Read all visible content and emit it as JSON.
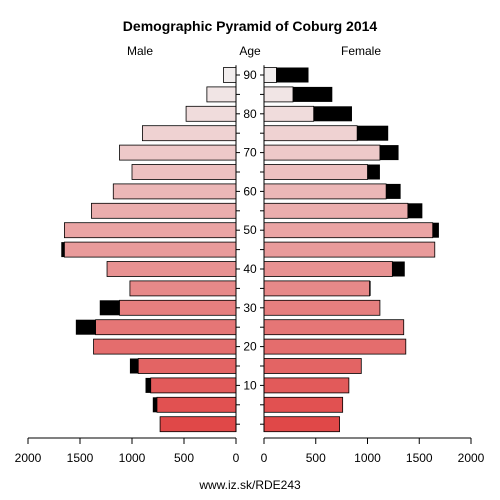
{
  "chart_data": {
    "type": "bar",
    "orientation": "horizontal-pyramid",
    "title": "Demographic Pyramid of Coburg 2014",
    "left_label": "Male",
    "center_label": "Age",
    "right_label": "Female",
    "footer": "www.iz.sk/RDE243",
    "age_groups": [
      "0-4",
      "5-9",
      "10-14",
      "15-19",
      "20-24",
      "25-29",
      "30-34",
      "35-39",
      "40-44",
      "45-49",
      "50-54",
      "55-59",
      "60-64",
      "65-69",
      "70-74",
      "75-79",
      "80-84",
      "85-89",
      "90+"
    ],
    "age_ticks": [
      10,
      20,
      30,
      40,
      50,
      60,
      70,
      80,
      90
    ],
    "x_ticks": [
      0,
      500,
      1000,
      1500,
      2000
    ],
    "xlim": [
      0,
      2000
    ],
    "series": [
      {
        "name": "Male",
        "values": [
          730,
          760,
          820,
          940,
          1370,
          1350,
          1120,
          1020,
          1240,
          1650,
          1650,
          1390,
          1180,
          1000,
          1120,
          900,
          480,
          280,
          120
        ]
      },
      {
        "name": "Male surplus",
        "values": [
          0,
          40,
          50,
          80,
          0,
          190,
          190,
          0,
          0,
          30,
          0,
          0,
          0,
          0,
          0,
          0,
          0,
          0,
          0
        ]
      },
      {
        "name": "Female",
        "values": [
          730,
          760,
          820,
          940,
          1370,
          1350,
          1120,
          1020,
          1240,
          1650,
          1630,
          1390,
          1180,
          1000,
          1120,
          900,
          480,
          280,
          120
        ]
      },
      {
        "name": "Female surplus",
        "values": [
          0,
          0,
          0,
          0,
          0,
          0,
          0,
          10,
          120,
          0,
          60,
          140,
          140,
          120,
          180,
          300,
          370,
          380,
          310
        ]
      }
    ],
    "colors": {
      "bar_young": "#e04848",
      "bar_old": "#f2eeee",
      "surplus": "#000000",
      "outline": "#000000",
      "axis": "#000000"
    },
    "grid": false
  }
}
